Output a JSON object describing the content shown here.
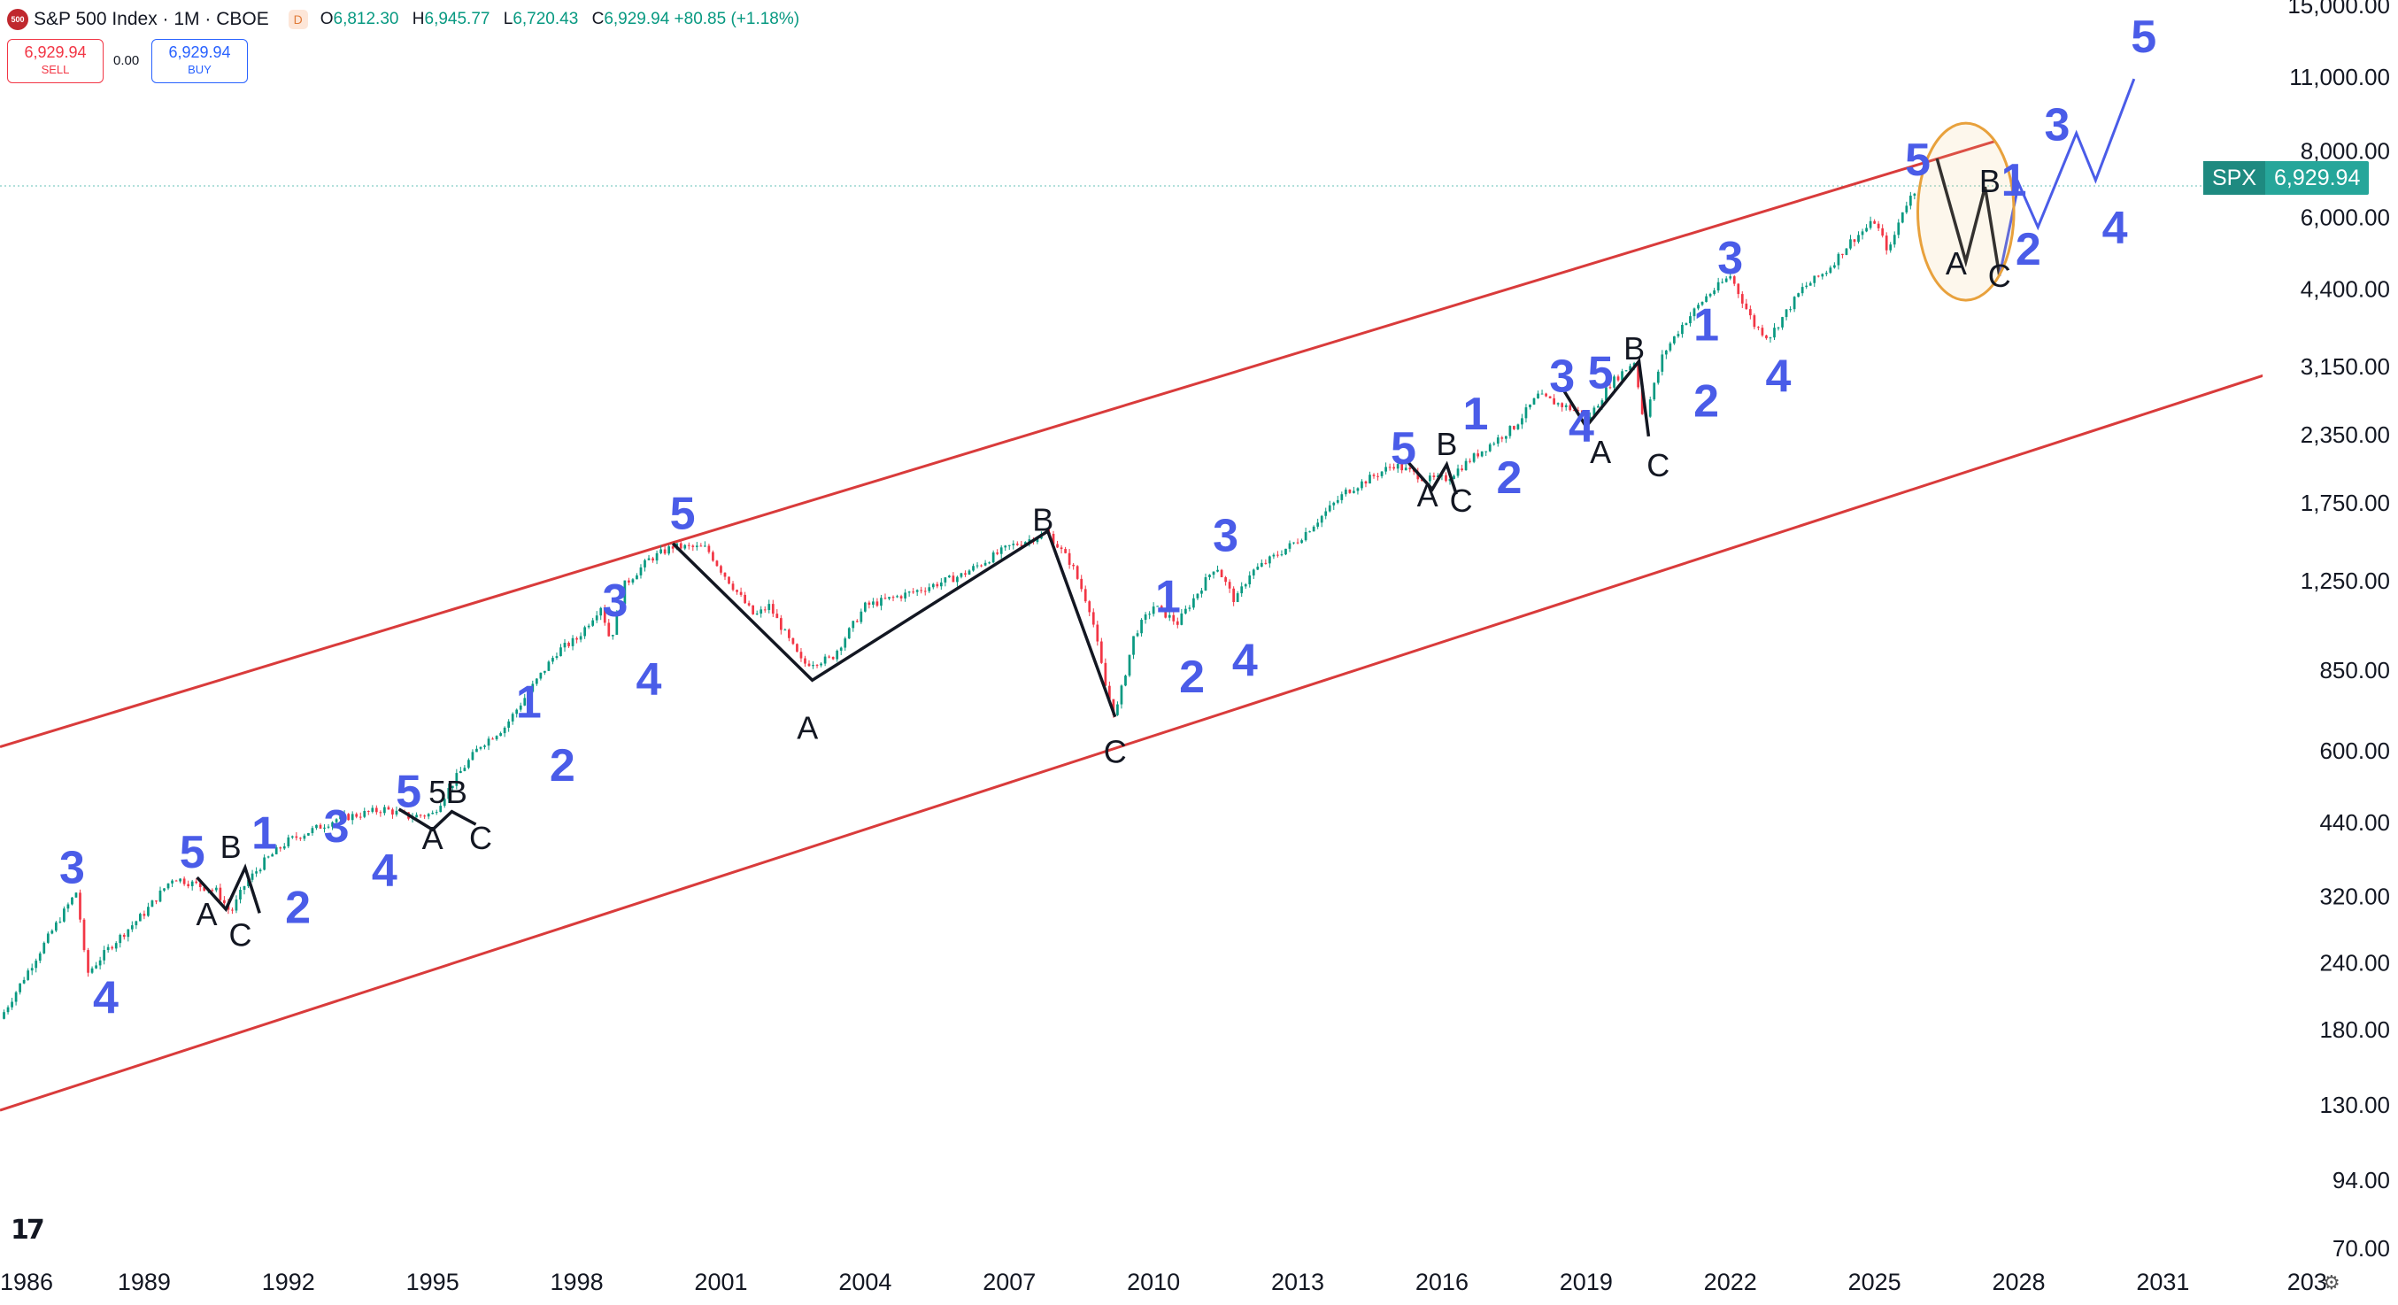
{
  "header": {
    "logo_text": "500",
    "title": "S&P 500 Index · 1M · CBOE",
    "badge": "D",
    "ohlc": [
      {
        "k": "O",
        "v": "6,812.30"
      },
      {
        "k": "H",
        "v": "6,945.77"
      },
      {
        "k": "L",
        "v": "6,720.43"
      },
      {
        "k": "C",
        "v": "6,929.94 +80.85 (+1.18%)"
      }
    ]
  },
  "trade": {
    "sell_price": "6,929.94",
    "sell_label": "SELL",
    "spread": "0.00",
    "buy_price": "6,929.94",
    "buy_label": "BUY"
  },
  "price_tag": {
    "symbol": "SPX",
    "value": "6,929.94"
  },
  "colors": {
    "up": "#089981",
    "down": "#f23645",
    "wave_blue": "#4a5ce8",
    "channel": "#d93b3b",
    "ellipse": "#e8a13c",
    "price_line": "#26a69a"
  },
  "icons": {
    "tv_logo": "tradingview-logo-icon",
    "settings": "gear-icon"
  },
  "chart_data": {
    "type": "candlestick",
    "title": "S&P 500 Index",
    "interval": "1M",
    "exchange": "CBOE",
    "y_scale": "log",
    "ylim": [
      70,
      15000
    ],
    "xlim": [
      1986.0,
      2033.0
    ],
    "grid": false,
    "y_ticks": [
      "15,000.00",
      "11,000.00",
      "8,000.00",
      "6,000.00",
      "4,400.00",
      "3,150.00",
      "2,350.00",
      "1,750.00",
      "1,250.00",
      "850.00",
      "600.00",
      "440.00",
      "320.00",
      "240.00",
      "180.00",
      "130.00",
      "94.00",
      "70.00"
    ],
    "x_ticks": [
      "1986",
      "1989",
      "1992",
      "1995",
      "1998",
      "2001",
      "2004",
      "2007",
      "2010",
      "2013",
      "2016",
      "2019",
      "2022",
      "2025",
      "2028",
      "2031",
      "203"
    ],
    "last_price": 6929.94,
    "price_path": [
      [
        1986.0,
        190
      ],
      [
        1986.6,
        235
      ],
      [
        1987.0,
        270
      ],
      [
        1987.6,
        330
      ],
      [
        1987.8,
        230
      ],
      [
        1988.3,
        260
      ],
      [
        1989.0,
        300
      ],
      [
        1989.6,
        350
      ],
      [
        1990.5,
        330
      ],
      [
        1990.8,
        300
      ],
      [
        1991.1,
        340
      ],
      [
        1991.5,
        375
      ],
      [
        1992.0,
        410
      ],
      [
        1993.0,
        450
      ],
      [
        1994.0,
        470
      ],
      [
        1994.5,
        455
      ],
      [
        1995.0,
        460
      ],
      [
        1995.5,
        540
      ],
      [
        1996.0,
        620
      ],
      [
        1996.5,
        670
      ],
      [
        1997.0,
        780
      ],
      [
        1997.6,
        930
      ],
      [
        1998.0,
        980
      ],
      [
        1998.5,
        1130
      ],
      [
        1998.7,
        970
      ],
      [
        1999.0,
        1240
      ],
      [
        1999.5,
        1380
      ],
      [
        2000.0,
        1460
      ],
      [
        2000.7,
        1450
      ],
      [
        2001.0,
        1320
      ],
      [
        2001.7,
        1080
      ],
      [
        2002.0,
        1130
      ],
      [
        2002.7,
        880
      ],
      [
        2003.3,
        900
      ],
      [
        2004.0,
        1130
      ],
      [
        2005.0,
        1200
      ],
      [
        2006.0,
        1290
      ],
      [
        2007.0,
        1460
      ],
      [
        2007.8,
        1550
      ],
      [
        2008.3,
        1350
      ],
      [
        2008.7,
        1100
      ],
      [
        2009.0,
        800
      ],
      [
        2009.2,
        700
      ],
      [
        2009.6,
        1000
      ],
      [
        2010.0,
        1130
      ],
      [
        2010.5,
        1050
      ],
      [
        2011.3,
        1350
      ],
      [
        2011.7,
        1150
      ],
      [
        2012.0,
        1300
      ],
      [
        2013.0,
        1500
      ],
      [
        2014.0,
        1850
      ],
      [
        2015.0,
        2080
      ],
      [
        2015.7,
        1950
      ],
      [
        2016.1,
        1960
      ],
      [
        2016.8,
        2200
      ],
      [
        2017.5,
        2450
      ],
      [
        2018.0,
        2800
      ],
      [
        2018.9,
        2600
      ],
      [
        2019.0,
        2500
      ],
      [
        2019.5,
        2950
      ],
      [
        2020.0,
        3250
      ],
      [
        2020.2,
        2500
      ],
      [
        2020.6,
        3350
      ],
      [
        2021.0,
        3800
      ],
      [
        2021.5,
        4300
      ],
      [
        2022.0,
        4700
      ],
      [
        2022.5,
        3800
      ],
      [
        2022.8,
        3600
      ],
      [
        2023.5,
        4450
      ],
      [
        2024.0,
        4800
      ],
      [
        2024.5,
        5450
      ],
      [
        2025.0,
        5950
      ],
      [
        2025.3,
        5200
      ],
      [
        2025.6,
        6300
      ],
      [
        2025.9,
        6929.94
      ]
    ],
    "channel": [
      {
        "name": "upper",
        "points": [
          [
            1986.0,
            615
          ],
          [
            2027.5,
            8400
          ]
        ]
      },
      {
        "name": "lower",
        "points": [
          [
            1986.0,
            128
          ],
          [
            2034.0,
            3250
          ]
        ]
      }
    ],
    "corrective_lines": [
      {
        "points": [
          [
            1990.1,
            350
          ],
          [
            1990.7,
            305
          ],
          [
            1991.1,
            365
          ],
          [
            1991.4,
            300
          ]
        ]
      },
      {
        "points": [
          [
            1994.3,
            470
          ],
          [
            1995.0,
            430
          ],
          [
            1995.4,
            465
          ],
          [
            1995.9,
            440
          ]
        ]
      },
      {
        "points": [
          [
            2000.0,
            1480
          ],
          [
            2002.9,
            820
          ],
          [
            2007.8,
            1560
          ],
          [
            2009.2,
            700
          ]
        ]
      },
      {
        "points": [
          [
            2015.3,
            2100
          ],
          [
            2015.8,
            1870
          ],
          [
            2016.1,
            2080
          ],
          [
            2016.3,
            1830
          ]
        ]
      },
      {
        "points": [
          [
            2018.5,
            2900
          ],
          [
            2019.0,
            2450
          ],
          [
            2020.1,
            3250
          ],
          [
            2020.3,
            2350
          ]
        ]
      },
      {
        "points": [
          [
            2026.3,
            7800
          ],
          [
            2026.9,
            5000
          ],
          [
            2027.3,
            6900
          ],
          [
            2027.6,
            4700
          ]
        ]
      }
    ],
    "projection": {
      "name": "wave projection",
      "points": [
        [
          2027.6,
          4700
        ],
        [
          2028.0,
          7000
        ],
        [
          2028.4,
          5800
        ],
        [
          2029.2,
          8700
        ],
        [
          2029.6,
          7100
        ],
        [
          2030.4,
          11000
        ]
      ]
    },
    "ellipse": {
      "center": [
        2026.9,
        6200
      ],
      "x_radius": 1.0,
      "label": ""
    },
    "wave_labels": [
      {
        "text": "3",
        "x": 1987.5,
        "y": 360,
        "color": "blue"
      },
      {
        "text": "4",
        "x": 1988.2,
        "y": 205,
        "color": "blue"
      },
      {
        "text": "5",
        "x": 1990.0,
        "y": 385,
        "color": "blue"
      },
      {
        "text": "A",
        "x": 1990.3,
        "y": 295,
        "color": "black"
      },
      {
        "text": "B",
        "x": 1990.8,
        "y": 395,
        "color": "black"
      },
      {
        "text": "C",
        "x": 1991.0,
        "y": 270,
        "color": "black"
      },
      {
        "text": "1",
        "x": 1991.5,
        "y": 418,
        "color": "blue"
      },
      {
        "text": "2",
        "x": 1992.2,
        "y": 303,
        "color": "blue"
      },
      {
        "text": "3",
        "x": 1993.0,
        "y": 430,
        "color": "blue"
      },
      {
        "text": "4",
        "x": 1994.0,
        "y": 355,
        "color": "blue"
      },
      {
        "text": "5",
        "x": 1995.1,
        "y": 500,
        "color": "black"
      },
      {
        "text": "5",
        "x": 1994.5,
        "y": 500,
        "color": "blue"
      },
      {
        "text": "A",
        "x": 1995.0,
        "y": 410,
        "color": "black"
      },
      {
        "text": "B",
        "x": 1995.5,
        "y": 500,
        "color": "black"
      },
      {
        "text": "C",
        "x": 1996.0,
        "y": 410,
        "color": "black"
      },
      {
        "text": "1",
        "x": 1997.0,
        "y": 735,
        "color": "blue"
      },
      {
        "text": "2",
        "x": 1997.7,
        "y": 560,
        "color": "blue"
      },
      {
        "text": "3",
        "x": 1998.8,
        "y": 1140,
        "color": "blue"
      },
      {
        "text": "4",
        "x": 1999.5,
        "y": 810,
        "color": "blue"
      },
      {
        "text": "5",
        "x": 2000.2,
        "y": 1660,
        "color": "blue"
      },
      {
        "text": "A",
        "x": 2002.8,
        "y": 660,
        "color": "black"
      },
      {
        "text": "B",
        "x": 2007.7,
        "y": 1620,
        "color": "black"
      },
      {
        "text": "C",
        "x": 2009.2,
        "y": 595,
        "color": "black"
      },
      {
        "text": "1",
        "x": 2010.3,
        "y": 1160,
        "color": "blue"
      },
      {
        "text": "2",
        "x": 2010.8,
        "y": 820,
        "color": "blue"
      },
      {
        "text": "3",
        "x": 2011.5,
        "y": 1510,
        "color": "blue"
      },
      {
        "text": "4",
        "x": 2011.9,
        "y": 880,
        "color": "blue"
      },
      {
        "text": "5",
        "x": 2015.2,
        "y": 2200,
        "color": "blue"
      },
      {
        "text": "A",
        "x": 2015.7,
        "y": 1800,
        "color": "black"
      },
      {
        "text": "B",
        "x": 2016.1,
        "y": 2250,
        "color": "black"
      },
      {
        "text": "C",
        "x": 2016.4,
        "y": 1760,
        "color": "black"
      },
      {
        "text": "1",
        "x": 2016.7,
        "y": 2550,
        "color": "blue"
      },
      {
        "text": "2",
        "x": 2017.4,
        "y": 1940,
        "color": "blue"
      },
      {
        "text": "3",
        "x": 2018.5,
        "y": 3000,
        "color": "blue"
      },
      {
        "text": "4",
        "x": 2018.9,
        "y": 2420,
        "color": "blue"
      },
      {
        "text": "5",
        "x": 2019.3,
        "y": 3050,
        "color": "blue"
      },
      {
        "text": "A",
        "x": 2019.3,
        "y": 2170,
        "color": "black"
      },
      {
        "text": "B",
        "x": 2020.0,
        "y": 3400,
        "color": "black"
      },
      {
        "text": "C",
        "x": 2020.5,
        "y": 2050,
        "color": "black"
      },
      {
        "text": "1",
        "x": 2021.5,
        "y": 3750,
        "color": "blue"
      },
      {
        "text": "2",
        "x": 2021.5,
        "y": 2700,
        "color": "blue"
      },
      {
        "text": "3",
        "x": 2022.0,
        "y": 5000,
        "color": "blue"
      },
      {
        "text": "4",
        "x": 2023.0,
        "y": 3000,
        "color": "blue"
      },
      {
        "text": "5",
        "x": 2025.9,
        "y": 7650,
        "color": "blue"
      },
      {
        "text": "A",
        "x": 2026.7,
        "y": 4900,
        "color": "black"
      },
      {
        "text": "B",
        "x": 2027.4,
        "y": 7000,
        "color": "black"
      },
      {
        "text": "C",
        "x": 2027.6,
        "y": 4650,
        "color": "black"
      },
      {
        "text": "1",
        "x": 2027.9,
        "y": 7000,
        "color": "blue"
      },
      {
        "text": "2",
        "x": 2028.2,
        "y": 5200,
        "color": "blue"
      },
      {
        "text": "3",
        "x": 2028.8,
        "y": 8900,
        "color": "blue"
      },
      {
        "text": "4",
        "x": 2030.0,
        "y": 5700,
        "color": "blue"
      },
      {
        "text": "5",
        "x": 2030.6,
        "y": 13000,
        "color": "blue"
      }
    ]
  }
}
